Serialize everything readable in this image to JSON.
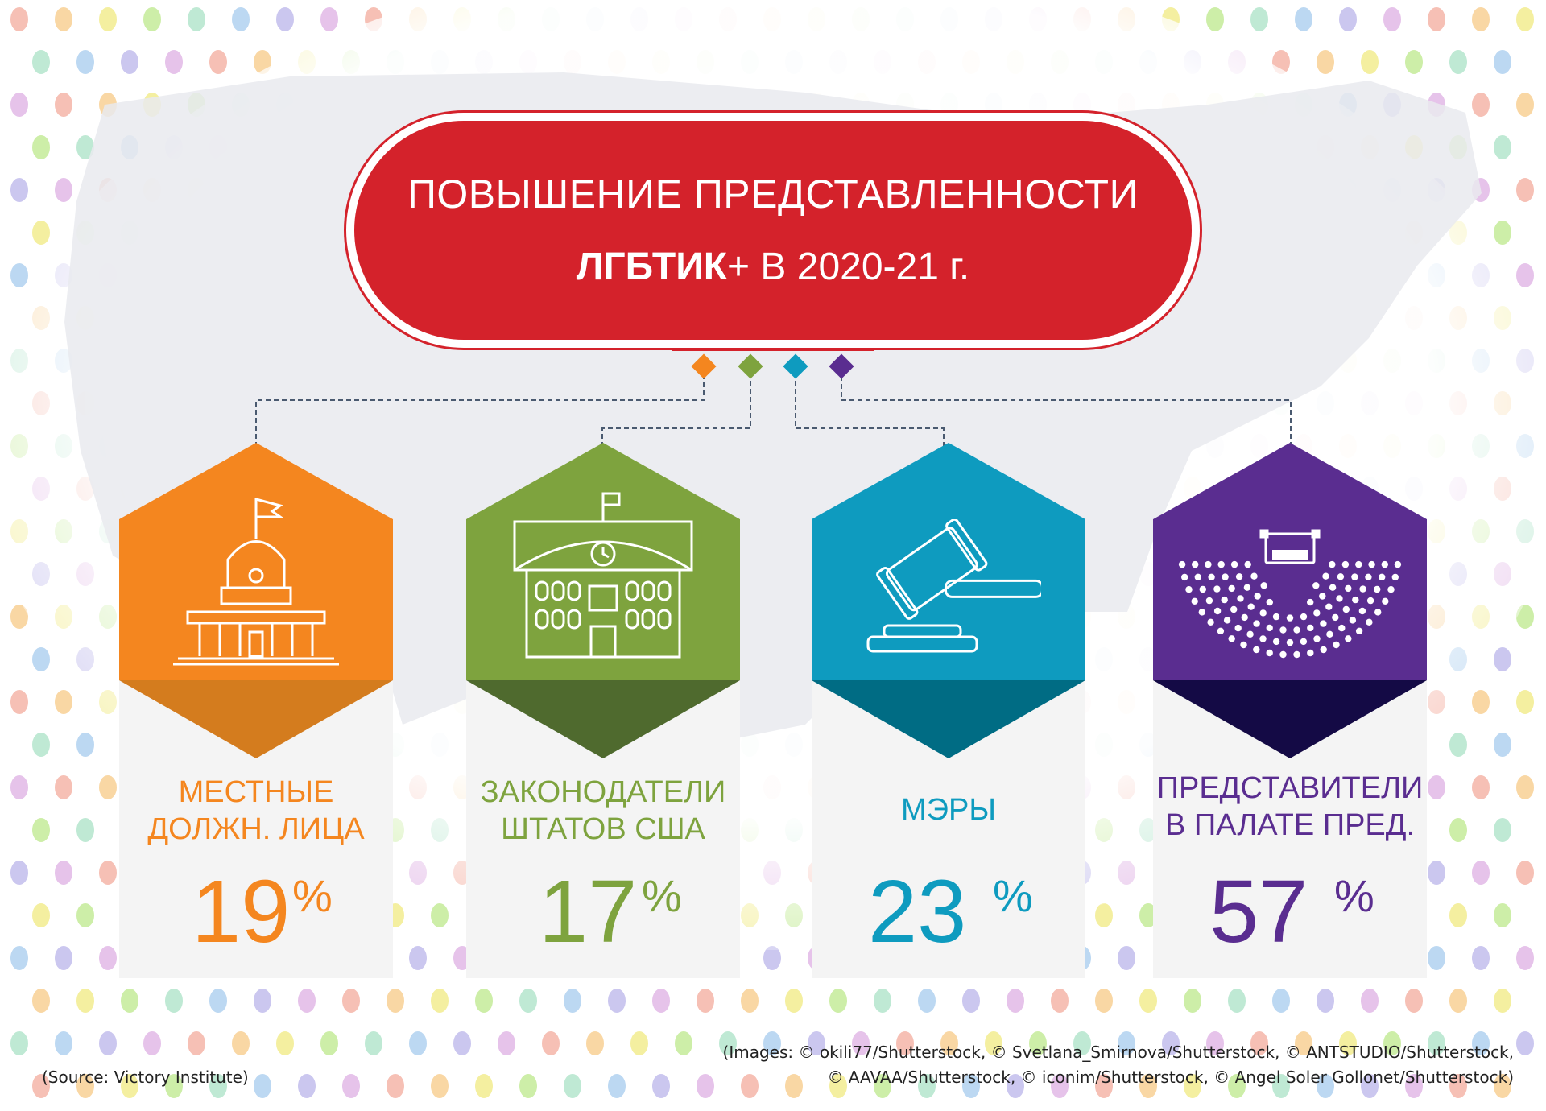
{
  "title": {
    "line1": "ПОВЫШЕНИЕ ПРЕДСТАВЛЕННОСТИ",
    "line2_bold": "ЛГБТИК",
    "line2_rest": "+ В 2020-21 г."
  },
  "colors": {
    "red": "#d4222b",
    "orange": "#f4861f",
    "green": "#7ea33e",
    "teal": "#0e9bbf",
    "purple": "#5a2d90"
  },
  "cards": [
    {
      "label_line1": "МЕСТНЫЕ",
      "label_line2": "ДОЛЖН. ЛИЦА",
      "value": "19",
      "unit": "%",
      "icon": "capitol-building-icon",
      "color": "#f4861f",
      "dark": "#d47c1e"
    },
    {
      "label_line1": "ЗАКОНОДАТЕЛИ",
      "label_line2": "ШТАТОВ США",
      "value": "17",
      "unit": "%",
      "icon": "school-building-icon",
      "color": "#7ea33e",
      "dark": "#4f6a2e"
    },
    {
      "label_line1": "МЭРЫ",
      "label_line2": "",
      "value": "23",
      "unit": "%",
      "icon": "gavel-icon",
      "color": "#0e9bbf",
      "dark": "#006c84"
    },
    {
      "label_line1": "ПРЕДСТАВИТЕЛИ",
      "label_line2": "В ПАЛАТЕ ПРЕД.",
      "value": "57",
      "unit": "%",
      "icon": "parliament-seats-icon",
      "color": "#5a2d90",
      "dark": "#140a45"
    }
  ],
  "credits": {
    "line1": "(Images: © okili77/Shutterstock, © Svetlana_Smirnova/Shutterstock, © ANTSTUDIO/Shutterstock,",
    "line2": "© AAVAA/Shutterstock, © iconim/Shutterstock, © Angel Soler Gollonet/Shutterstock)"
  },
  "source": "(Source: Victory Institute)"
}
